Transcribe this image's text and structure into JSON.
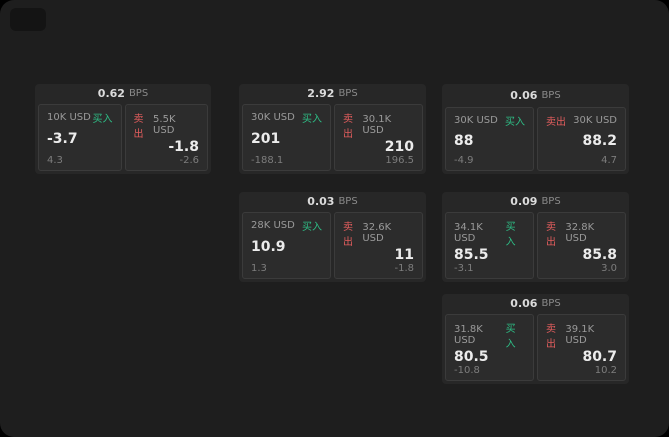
{
  "labels": {
    "bps": "BPS",
    "buy": "买入",
    "sell": "卖出"
  },
  "colors": {
    "background": "#1e1e1e",
    "card": "#272727",
    "panel": "#2c2c2c",
    "buy_green": "#2ebd85",
    "sell_red": "#e25d5d"
  },
  "cards": [
    {
      "bps": "0.62",
      "buy": {
        "amount": "10K USD",
        "price": "-3.7",
        "sub": "4.3"
      },
      "sell": {
        "amount": "5.5K USD",
        "price": "-1.8",
        "sub": "-2.6"
      }
    },
    {
      "bps": "2.92",
      "buy": {
        "amount": "30K USD",
        "price": "201",
        "sub": "-188.1"
      },
      "sell": {
        "amount": "30.1K USD",
        "price": "210",
        "sub": "196.5"
      }
    },
    {
      "bps": "0.06",
      "buy": {
        "amount": "30K USD",
        "price": "88",
        "sub": "-4.9"
      },
      "sell": {
        "amount": "30K USD",
        "price": "88.2",
        "sub": "4.7"
      }
    },
    {
      "bps": "0.03",
      "buy": {
        "amount": "28K USD",
        "price": "10.9",
        "sub": "1.3"
      },
      "sell": {
        "amount": "32.6K USD",
        "price": "11",
        "sub": "-1.8"
      }
    },
    {
      "bps": "0.09",
      "buy": {
        "amount": "34.1K USD",
        "price": "85.5",
        "sub": "-3.1"
      },
      "sell": {
        "amount": "32.8K USD",
        "price": "85.8",
        "sub": "3.0"
      }
    },
    {
      "bps": "0.06",
      "buy": {
        "amount": "31.8K USD",
        "price": "80.5",
        "sub": "-10.8"
      },
      "sell": {
        "amount": "39.1K USD",
        "price": "80.7",
        "sub": "10.2"
      }
    }
  ]
}
